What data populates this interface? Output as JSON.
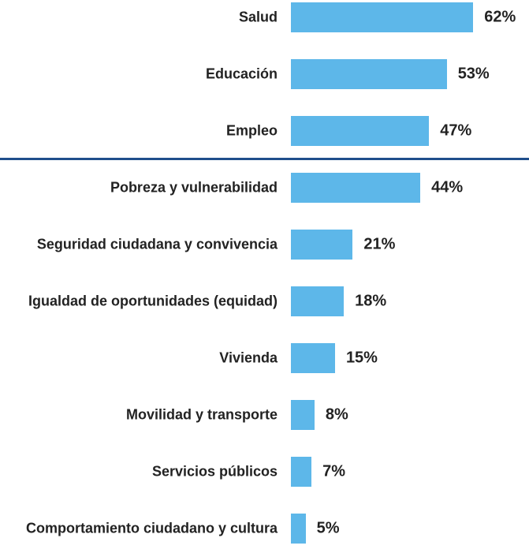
{
  "chart_data": {
    "type": "bar",
    "orientation": "horizontal",
    "color": "#5db7e9",
    "categories": [
      "Salud",
      "Educación",
      "Empleo",
      "Pobreza y vulnerabilidad",
      "Seguridad ciudadana y convivencia",
      "Igualdad de oportunidades (equidad)",
      "Vivienda",
      "Movilidad y transporte",
      "Servicios públicos",
      "Comportamiento ciudadano y cultura"
    ],
    "values": [
      62,
      53,
      47,
      44,
      21,
      18,
      15,
      8,
      7,
      5
    ],
    "value_labels": [
      "62%",
      "53%",
      "47%",
      "44%",
      "21%",
      "18%",
      "15%",
      "8%",
      "7%",
      "5%"
    ]
  }
}
